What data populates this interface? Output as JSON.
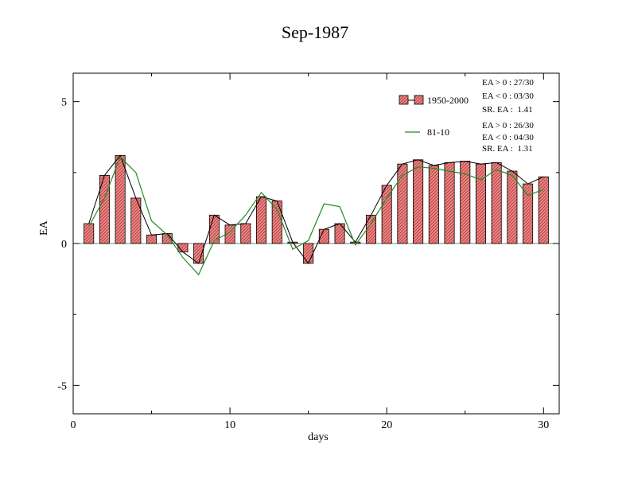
{
  "chart_data": {
    "type": "bar",
    "title": "Sep-1987",
    "xlabel": "days",
    "ylabel": "EA",
    "xlim": [
      0,
      31
    ],
    "ylim": [
      -6,
      6
    ],
    "xticks": [
      0,
      10,
      20,
      30
    ],
    "yticks": [
      -5,
      0,
      5
    ],
    "grid": false,
    "legend_position": "top-right",
    "x": [
      1,
      2,
      3,
      4,
      5,
      6,
      7,
      8,
      9,
      10,
      11,
      12,
      13,
      14,
      15,
      16,
      17,
      18,
      19,
      20,
      21,
      22,
      23,
      24,
      25,
      26,
      27,
      28,
      29,
      30
    ],
    "series": [
      {
        "name": "1950-2000",
        "kind": "bar",
        "color": "#f08080",
        "values": [
          0.7,
          2.4,
          3.1,
          1.6,
          0.3,
          0.35,
          -0.3,
          -0.7,
          1.0,
          0.65,
          0.7,
          1.65,
          1.5,
          0.05,
          -0.7,
          0.5,
          0.7,
          0.05,
          1.0,
          2.05,
          2.8,
          2.95,
          2.75,
          2.85,
          2.9,
          2.8,
          2.85,
          2.55,
          2.1,
          2.35
        ]
      },
      {
        "name": "81-10",
        "kind": "line",
        "color": "#228b22",
        "values": [
          0.6,
          1.6,
          3.05,
          2.5,
          0.8,
          0.3,
          -0.5,
          -1.1,
          0.1,
          0.4,
          1.0,
          1.8,
          1.2,
          -0.2,
          0.1,
          1.4,
          1.3,
          -0.05,
          0.7,
          1.6,
          2.4,
          2.7,
          2.65,
          2.55,
          2.45,
          2.25,
          2.6,
          2.4,
          1.7,
          1.9
        ]
      }
    ]
  },
  "stats": {
    "s1": {
      "pos": "EA > 0 : 27/30",
      "neg": "EA < 0 : 03/30",
      "sr": "SR. EA :  1.41"
    },
    "s2": {
      "pos": "EA > 0 : 26/30",
      "neg": "EA < 0 : 04/30",
      "sr": "SR. EA :  1.31"
    }
  },
  "colors": {
    "bar_fill": "#f08080",
    "bar_edge": "#000000",
    "line_1950": "#000000",
    "line_8110": "#228b22"
  }
}
